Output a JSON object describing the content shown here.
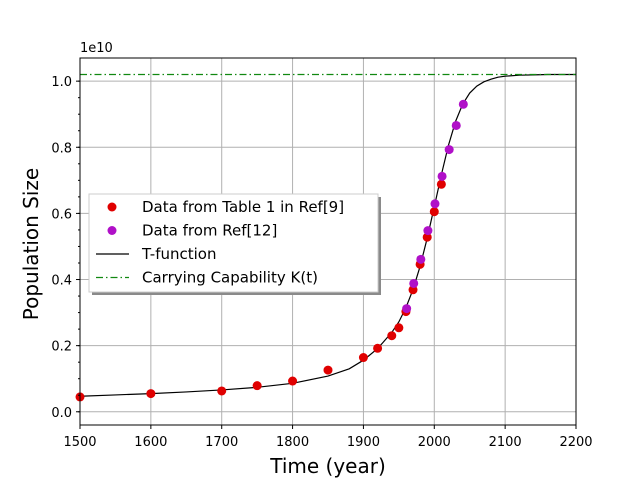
{
  "chart_data": {
    "type": "scatter",
    "xlabel": "Time (year)",
    "ylabel": "Population Size",
    "y_exponent_label": "1e10",
    "xlim": [
      1500,
      2200
    ],
    "ylim": [
      -0.04,
      1.07
    ],
    "y_scale_note": "values in units of 1e10",
    "x_ticks": [
      1500,
      1600,
      1700,
      1800,
      1900,
      2000,
      2100,
      2200
    ],
    "y_ticks": [
      0.0,
      0.2,
      0.4,
      0.6,
      0.8,
      1.0
    ],
    "y_tick_labels": [
      "0.0",
      "0.2",
      "0.4",
      "0.6",
      "0.8",
      "1.0"
    ],
    "x_tick_labels": [
      "1500",
      "1600",
      "1700",
      "1800",
      "1900",
      "2000",
      "2100",
      "2200"
    ],
    "grid": true,
    "legend_position": "center-left",
    "legend": [
      {
        "label": "Data from Table 1 in Ref[9]",
        "style": "marker",
        "color": "#e00000"
      },
      {
        "label": "Data from Ref[12]",
        "style": "marker",
        "color": "#b010c8"
      },
      {
        "label": "T-function",
        "style": "solid-line",
        "color": "#000000"
      },
      {
        "label": "Carrying Capability K(t)",
        "style": "dashdot-line",
        "color": "#118811"
      }
    ],
    "series": [
      {
        "name": "Data from Table 1 in Ref[9]",
        "kind": "scatter",
        "color": "#e00000",
        "x": [
          1500,
          1600,
          1700,
          1750,
          1800,
          1850,
          1900,
          1920,
          1940,
          1950,
          1960,
          1970,
          1980,
          1990,
          2000,
          2010
        ],
        "y": [
          0.045,
          0.055,
          0.063,
          0.079,
          0.093,
          0.126,
          0.164,
          0.192,
          0.23,
          0.254,
          0.303,
          0.369,
          0.446,
          0.528,
          0.605,
          0.688
        ]
      },
      {
        "name": "Data from Ref[12]",
        "kind": "scatter",
        "color": "#b010c8",
        "x": [
          1961,
          1971,
          1981,
          1991,
          2001,
          2011,
          2021,
          2031,
          2041
        ],
        "y": [
          0.312,
          0.388,
          0.461,
          0.548,
          0.629,
          0.712,
          0.793,
          0.866,
          0.93
        ]
      },
      {
        "name": "T-function",
        "kind": "line",
        "color": "#000000",
        "x": [
          1500,
          1550,
          1600,
          1650,
          1700,
          1750,
          1800,
          1850,
          1880,
          1900,
          1920,
          1940,
          1950,
          1960,
          1970,
          1980,
          1990,
          2000,
          2010,
          2020,
          2030,
          2040,
          2050,
          2060,
          2070,
          2080,
          2090,
          2100,
          2120,
          2140,
          2160,
          2200
        ],
        "y": [
          0.047,
          0.051,
          0.055,
          0.06,
          0.066,
          0.074,
          0.086,
          0.108,
          0.13,
          0.156,
          0.191,
          0.24,
          0.272,
          0.315,
          0.37,
          0.44,
          0.525,
          0.62,
          0.717,
          0.806,
          0.878,
          0.93,
          0.964,
          0.985,
          0.998,
          1.006,
          1.012,
          1.015,
          1.018,
          1.019,
          1.02,
          1.02
        ]
      },
      {
        "name": "Carrying Capability K(t)",
        "kind": "line",
        "color": "#118811",
        "x": [
          1500,
          2200
        ],
        "y": [
          1.02,
          1.02
        ]
      }
    ]
  }
}
